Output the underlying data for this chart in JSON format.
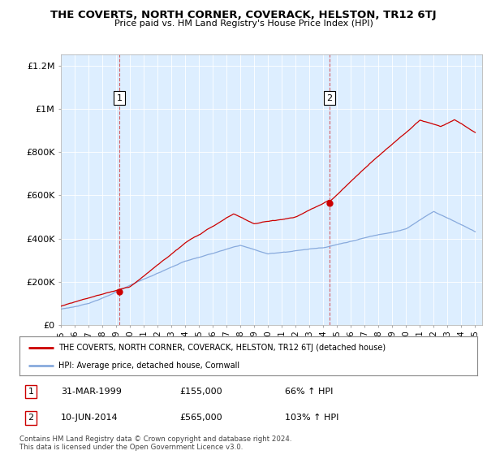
{
  "title": "THE COVERTS, NORTH CORNER, COVERACK, HELSTON, TR12 6TJ",
  "subtitle": "Price paid vs. HM Land Registry's House Price Index (HPI)",
  "property_label": "THE COVERTS, NORTH CORNER, COVERACK, HELSTON, TR12 6TJ (detached house)",
  "hpi_label": "HPI: Average price, detached house, Cornwall",
  "sale1_date": "31-MAR-1999",
  "sale1_price": "£155,000",
  "sale1_hpi": "66% ↑ HPI",
  "sale2_date": "10-JUN-2014",
  "sale2_price": "£565,000",
  "sale2_hpi": "103% ↑ HPI",
  "footer": "Contains HM Land Registry data © Crown copyright and database right 2024.\nThis data is licensed under the Open Government Licence v3.0.",
  "property_color": "#cc0000",
  "hpi_color": "#88aadd",
  "sale1_x": 1999.25,
  "sale1_y": 155000,
  "sale2_x": 2014.44,
  "sale2_y": 565000,
  "ylim": [
    0,
    1250000
  ],
  "xlim": [
    1995.0,
    2025.5
  ],
  "yticks": [
    0,
    200000,
    400000,
    600000,
    800000,
    1000000,
    1200000
  ],
  "ytick_labels": [
    "£0",
    "£200K",
    "£400K",
    "£600K",
    "£800K",
    "£1M",
    "£1.2M"
  ],
  "xticks": [
    1995,
    1996,
    1997,
    1998,
    1999,
    2000,
    2001,
    2002,
    2003,
    2004,
    2005,
    2006,
    2007,
    2008,
    2009,
    2010,
    2011,
    2012,
    2013,
    2014,
    2015,
    2016,
    2017,
    2018,
    2019,
    2020,
    2021,
    2022,
    2023,
    2024,
    2025
  ],
  "plot_bg_color": "#ddeeff",
  "background_color": "#ffffff",
  "grid_color": "#ffffff"
}
